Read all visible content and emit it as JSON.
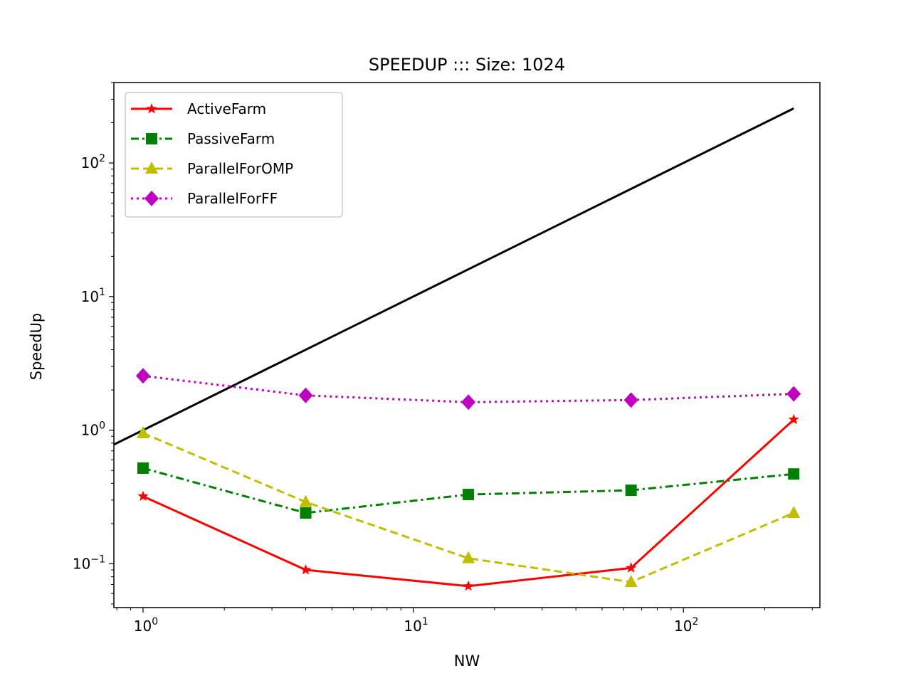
{
  "chart_data": {
    "type": "line",
    "title": "SPEEDUP ::: Size: 1024",
    "xlabel": "NW",
    "ylabel": "SpeedUp",
    "xscale": "log",
    "yscale": "log",
    "xlim": [
      0.78,
      320
    ],
    "ylim": [
      0.047,
      400
    ],
    "x_ticks": [
      {
        "value": 1,
        "base": "10",
        "exp": "0"
      },
      {
        "value": 10,
        "base": "10",
        "exp": "1"
      },
      {
        "value": 100,
        "base": "10",
        "exp": "2"
      }
    ],
    "y_ticks": [
      {
        "value": 0.1,
        "base": "10",
        "exp": "−1"
      },
      {
        "value": 1,
        "base": "10",
        "exp": "0"
      },
      {
        "value": 10,
        "base": "10",
        "exp": "1"
      },
      {
        "value": 100,
        "base": "10",
        "exp": "2"
      }
    ],
    "x": [
      1,
      4,
      16,
      64,
      256
    ],
    "ideal": {
      "x": [
        0.78,
        256
      ],
      "y": [
        0.78,
        256
      ],
      "color": "#000000"
    },
    "series": [
      {
        "name": "ActiveFarm",
        "values": [
          0.32,
          0.09,
          0.068,
          0.093,
          1.2
        ],
        "color": "#ff0000",
        "dash": "solid",
        "marker": "star"
      },
      {
        "name": "PassiveFarm",
        "values": [
          0.52,
          0.24,
          0.33,
          0.355,
          0.47
        ],
        "color": "#008000",
        "dash": "dashdot",
        "marker": "square"
      },
      {
        "name": "ParallelForOMP",
        "values": [
          0.95,
          0.29,
          0.11,
          0.073,
          0.24
        ],
        "color": "#bfbf00",
        "dash": "dashed",
        "marker": "triangle"
      },
      {
        "name": "ParallelForFF",
        "values": [
          2.55,
          1.82,
          1.62,
          1.68,
          1.87
        ],
        "color": "#bf00bf",
        "dash": "dotted",
        "marker": "diamond"
      }
    ],
    "legend_position": "top-left",
    "grid": false
  }
}
